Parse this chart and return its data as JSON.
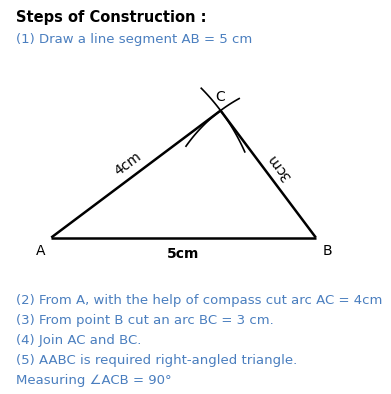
{
  "title": "Steps of Construction :",
  "step1": "(1) Draw a line segment AB = 5 cm",
  "step2": "(2) From A, with the help of compass cut arc AC = 4cm",
  "step3": "(3) From point B cut an arc BC = 3 cm.",
  "step4": "(4) Join AC and BC.",
  "step5": "(5) AABC is required right-angled triangle.",
  "step6": "Measuring ∠ACB = 90°",
  "label_A": "A",
  "label_B": "B",
  "label_C": "C",
  "label_AB": "5cm",
  "label_AC": "4cm",
  "label_BC": "3cm",
  "A": [
    0.0,
    0.0
  ],
  "B": [
    5.0,
    0.0
  ],
  "C": [
    3.2,
    2.4
  ],
  "triangle_color": "#000000",
  "text_color_black": "#000000",
  "text_color_blue": "#4a7ebf",
  "background_color": "#ffffff",
  "title_fontsize": 10.5,
  "step_fontsize": 9.5,
  "label_fontsize": 10
}
